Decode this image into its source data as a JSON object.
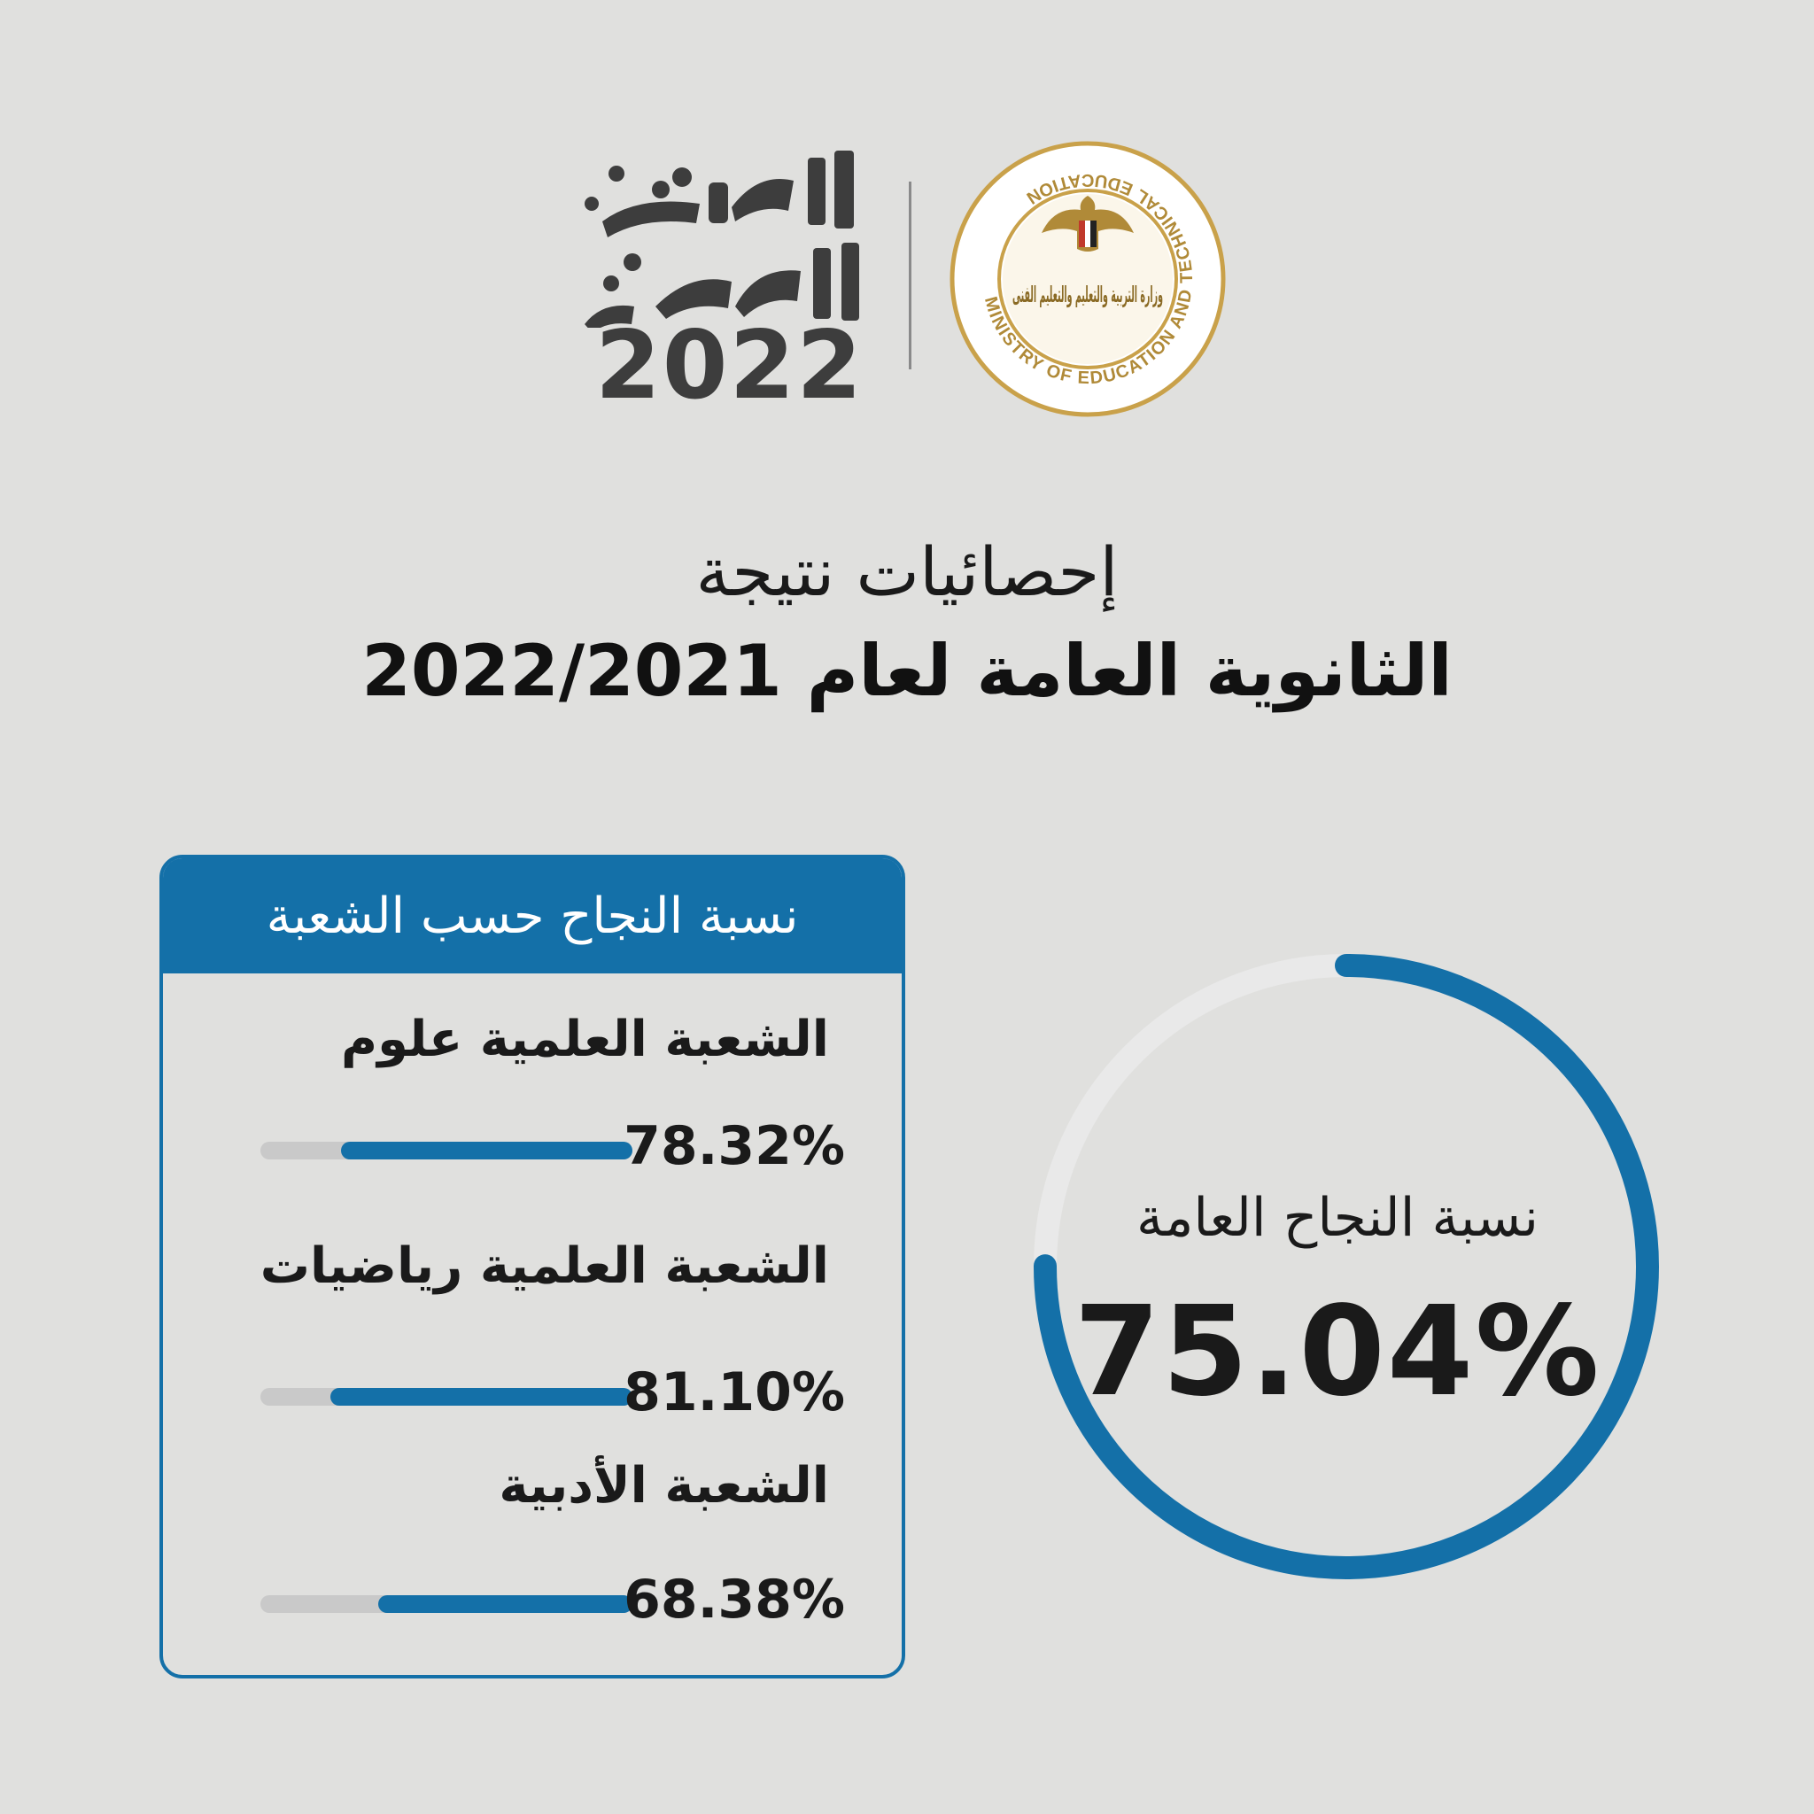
{
  "header": {
    "event_logo_text": "الثانوية العامة",
    "event_year": "2022",
    "ministry_arabic": "وزارة التربية والتعليم والتعليم الفنى",
    "ministry_english": "MINISTRY OF EDUCATION AND TECHNICAL EDUCATION"
  },
  "title": {
    "line1": "إحصائيات نتيجة",
    "line2": "الثانوية العامة لعام 2022/2021"
  },
  "card": {
    "header_title": "نسبة النجاح حسب الشعبة"
  },
  "gauge": {
    "label": "نسبة النجاح العامة",
    "value_text": "75.04%"
  },
  "colors": {
    "background": "#e0e0de",
    "accent_blue": "#1470a8",
    "track_gray": "#c9c9c9",
    "ring_track": "#e9e9e9",
    "seal_gold": "#c9a14a"
  },
  "chart_data": [
    {
      "type": "bar",
      "title": "نسبة النجاح حسب الشعبة",
      "categories": [
        "الشعبة العلمية علوم",
        "الشعبة العلمية رياضيات",
        "الشعبة الأدبية"
      ],
      "values": [
        78.32,
        81.1,
        68.38
      ],
      "value_labels": [
        "78.32%",
        "81.10%",
        "68.38%"
      ],
      "ylim": [
        0,
        100
      ]
    },
    {
      "type": "pie",
      "title": "نسبة النجاح العامة",
      "values": [
        75.04
      ],
      "value_label": "75.04%",
      "ylim": [
        0,
        100
      ]
    }
  ]
}
